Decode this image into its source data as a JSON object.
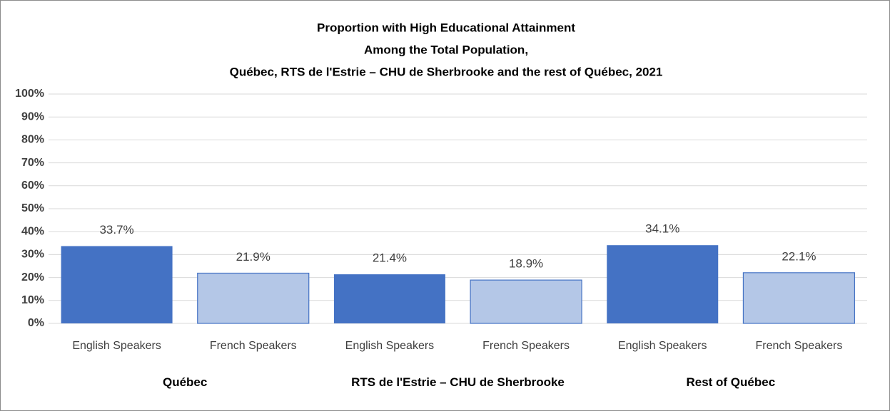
{
  "chart_data": {
    "type": "bar",
    "title": [
      "Proportion with High Educational  Attainment",
      "Among the Total Population,",
      "Québec, RTS de l'Estrie – CHU de Sherbrooke and the rest of Québec, 2021"
    ],
    "categories": [
      "English Speakers",
      "French Speakers",
      "English Speakers",
      "French Speakers",
      "English Speakers",
      "French Speakers"
    ],
    "groups": [
      "Québec",
      "RTS de l'Estrie – CHU de Sherbrooke",
      "Rest of Québec"
    ],
    "values": [
      33.7,
      21.9,
      21.4,
      18.9,
      34.1,
      22.1
    ],
    "value_labels": [
      "33.7%",
      "21.9%",
      "21.4%",
      "18.9%",
      "34.1%",
      "22.1%"
    ],
    "colors": [
      "#4472c4",
      "#b4c7e7",
      "#4472c4",
      "#b4c7e7",
      "#4472c4",
      "#b4c7e7"
    ],
    "ylim": [
      0,
      100
    ],
    "yticks": [
      {
        "value": 0,
        "label": "0%"
      },
      {
        "value": 10,
        "label": "10%"
      },
      {
        "value": 20,
        "label": "20%"
      },
      {
        "value": 30,
        "label": "30%"
      },
      {
        "value": 40,
        "label": "40%"
      },
      {
        "value": 50,
        "label": "50%"
      },
      {
        "value": 60,
        "label": "60%"
      },
      {
        "value": 70,
        "label": "70%"
      },
      {
        "value": 80,
        "label": "80%"
      },
      {
        "value": 90,
        "label": "90%"
      },
      {
        "value": 100,
        "label": "100%"
      }
    ],
    "grid": true
  }
}
